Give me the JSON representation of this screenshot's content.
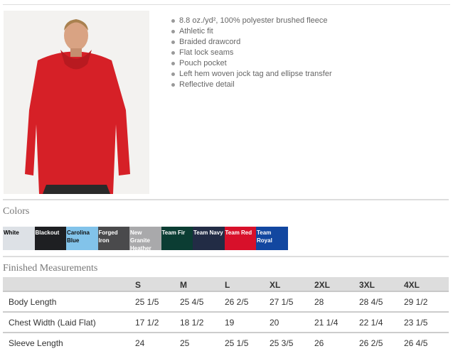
{
  "product": {
    "features": [
      "8.8 oz./yd², 100% polyester brushed fleece",
      "Athletic fit",
      "Braided drawcord",
      "Flat lock seams",
      "Pouch pocket",
      "Left hem woven jock tag and ellipse transfer",
      "Reflective detail"
    ]
  },
  "colors": {
    "title": "Colors",
    "swatches": [
      {
        "name": "White",
        "hex": "#dde1e6",
        "text": "#000"
      },
      {
        "name": "Blackout",
        "hex": "#1e1f22",
        "text": "#fff"
      },
      {
        "name": "Carolina Blue",
        "hex": "#82c3ea",
        "text": "#111"
      },
      {
        "name": "Forged Iron",
        "hex": "#4a4a4c",
        "text": "#fff"
      },
      {
        "name": "New Granite Heather",
        "hex": "#a9a9ab",
        "text": "#fff"
      },
      {
        "name": "Team Fir",
        "hex": "#0b3d33",
        "text": "#fff"
      },
      {
        "name": "Team Navy",
        "hex": "#222c45",
        "text": "#fff"
      },
      {
        "name": "Team Red",
        "hex": "#d8102a",
        "text": "#fff"
      },
      {
        "name": "Team Royal",
        "hex": "#1247a0",
        "text": "#fff"
      }
    ]
  },
  "measurements": {
    "title": "Finished Measurements",
    "sizes": [
      "S",
      "M",
      "L",
      "XL",
      "2XL",
      "3XL",
      "4XL"
    ],
    "rows": [
      {
        "label": "Body Length",
        "values": [
          "25 1/5",
          "25 4/5",
          "26 2/5",
          "27 1/5",
          "28",
          "28 4/5",
          "29 1/2"
        ]
      },
      {
        "label": "Chest Width (Laid Flat)",
        "values": [
          "17 1/2",
          "18 1/2",
          "19",
          "20",
          "21 1/4",
          "22 1/4",
          "23 1/5"
        ]
      },
      {
        "label": "Sleeve Length",
        "values": [
          "24",
          "25",
          "25 1/5",
          "25 3/5",
          "26",
          "26 2/5",
          "26 4/5"
        ]
      }
    ]
  }
}
